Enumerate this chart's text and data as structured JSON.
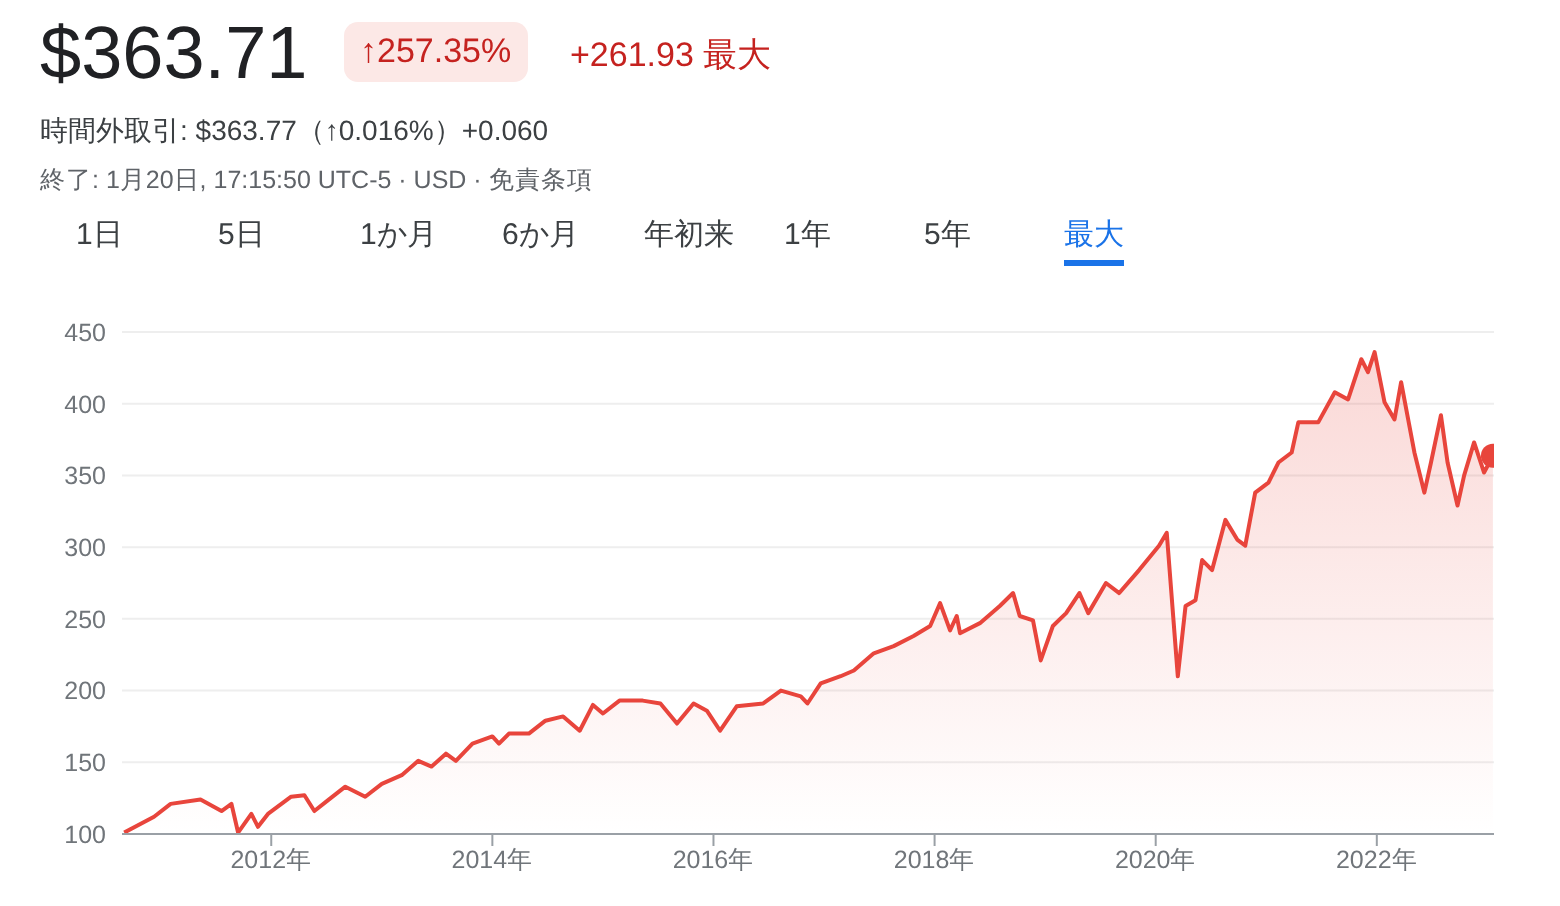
{
  "chart_data": {
    "type": "area",
    "title": "$363.71",
    "annotations": [
      "↑257.35%",
      "+261.93 最大",
      "時間外取引: $363.77（↑0.016%）+0.060",
      "終了: 1月20日, 17:15:50 UTC-5 · USD · 免責条項",
      "1日",
      "5日",
      "1か月",
      "6か月",
      "年初来",
      "1年",
      "5年",
      "最大"
    ],
    "x": [
      2010.67,
      2010.94,
      2011.09,
      2011.36,
      2011.55,
      2011.64,
      2011.7,
      2011.82,
      2011.88,
      2011.97,
      2012.18,
      2012.3,
      2012.39,
      2012.52,
      2012.67,
      2012.85,
      2013.0,
      2013.18,
      2013.33,
      2013.45,
      2013.58,
      2013.67,
      2013.82,
      2014.0,
      2014.06,
      2014.15,
      2014.33,
      2014.48,
      2014.64,
      2014.79,
      2014.91,
      2015.0,
      2015.15,
      2015.36,
      2015.52,
      2015.67,
      2015.82,
      2015.94,
      2016.06,
      2016.21,
      2016.45,
      2016.61,
      2016.79,
      2016.85,
      2016.97,
      2017.15,
      2017.27,
      2017.45,
      2017.63,
      2017.81,
      2017.96,
      2018.05,
      2018.14,
      2018.2,
      2018.23,
      2018.41,
      2018.59,
      2018.71,
      2018.77,
      2018.89,
      2018.96,
      2019.07,
      2019.19,
      2019.31,
      2019.39,
      2019.55,
      2019.67,
      2019.85,
      2020.03,
      2020.1,
      2020.2,
      2020.27,
      2020.36,
      2020.42,
      2020.51,
      2020.63,
      2020.74,
      2020.81,
      2020.9,
      2021.02,
      2021.11,
      2021.23,
      2021.29,
      2021.47,
      2021.62,
      2021.74,
      2021.86,
      2021.92,
      2021.98,
      2022.07,
      2022.16,
      2022.22,
      2022.34,
      2022.43,
      2022.49,
      2022.58,
      2022.64,
      2022.73,
      2022.79,
      2022.88,
      2022.97,
      2023.05
    ],
    "series": [
      {
        "color": "#e8453c",
        "values": [
          101,
          112,
          121,
          124,
          116,
          121,
          101,
          114,
          105,
          114,
          126,
          127,
          116,
          124,
          133,
          126,
          135,
          141,
          151,
          147,
          156,
          151,
          163,
          168,
          163,
          170,
          170,
          179,
          182,
          172,
          190,
          184,
          193,
          193,
          191,
          177,
          191,
          186,
          172,
          189,
          191,
          200,
          196,
          191,
          205,
          210,
          214,
          226,
          231,
          238,
          245,
          261,
          242,
          252,
          240,
          247,
          259,
          268,
          252,
          249,
          221,
          245,
          254,
          268,
          254,
          275,
          268,
          284,
          301,
          310,
          210,
          259,
          263,
          291,
          284,
          319,
          305,
          301,
          338,
          345,
          359,
          366,
          387,
          387,
          408,
          403,
          431,
          422,
          436,
          401,
          389,
          415,
          366,
          338,
          359,
          392,
          359,
          329,
          350,
          373,
          352,
          363.71
        ]
      }
    ],
    "xlim": [
      2010.65,
      2023.06
    ],
    "xticks": [
      {
        "value": 2012,
        "label": "2012年"
      },
      {
        "value": 2014,
        "label": "2014年"
      },
      {
        "value": 2016,
        "label": "2016年"
      },
      {
        "value": 2018,
        "label": "2018年"
      },
      {
        "value": 2020,
        "label": "2020年"
      },
      {
        "value": 2022,
        "label": "2022年"
      }
    ],
    "ylim": [
      100,
      450
    ],
    "yticks": [
      100,
      150,
      200,
      250,
      300,
      350,
      400,
      450
    ],
    "grid": "y",
    "legend": false,
    "marker": "none"
  }
}
